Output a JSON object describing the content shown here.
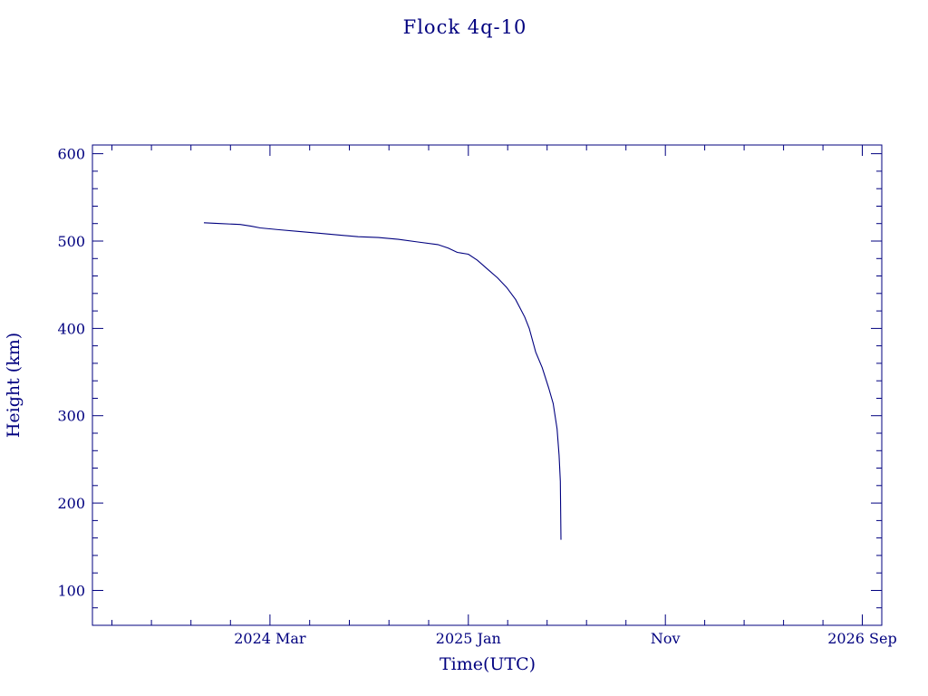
{
  "chart_data": {
    "type": "line",
    "title": "Flock 4q-10",
    "xlabel": "Time(UTC)",
    "ylabel": "Height (km)",
    "xlim": [
      "2023-06-01",
      "2026-10-01"
    ],
    "ylim": [
      60,
      610
    ],
    "grid": false,
    "x_ticks": [
      {
        "date": "2024-03-01",
        "label": "2024 Mar"
      },
      {
        "date": "2025-01-01",
        "label": "2025 Jan"
      },
      {
        "date": "2025-11-01",
        "label": "Nov"
      },
      {
        "date": "2026-09-01",
        "label": "2026 Sep"
      }
    ],
    "y_ticks": [
      100,
      200,
      300,
      400,
      500,
      600
    ],
    "series": [
      {
        "x": [
          "2023-11-20",
          "2023-12-15",
          "2024-01-15",
          "2024-02-01",
          "2024-02-15",
          "2024-03-15",
          "2024-04-15",
          "2024-05-15",
          "2024-06-15",
          "2024-07-15",
          "2024-08-15",
          "2024-09-15",
          "2024-10-15",
          "2024-11-15",
          "2024-12-01",
          "2024-12-15",
          "2025-01-01",
          "2025-01-15",
          "2025-02-01",
          "2025-02-15",
          "2025-03-01",
          "2025-03-15",
          "2025-03-29",
          "2025-04-05",
          "2025-04-15",
          "2025-04-25",
          "2025-05-05",
          "2025-05-12",
          "2025-05-18",
          "2025-05-21",
          "2025-05-23",
          "2025-05-24"
        ],
        "y": [
          521,
          520,
          519,
          517,
          515,
          513,
          511,
          509,
          507,
          505,
          504,
          502,
          499,
          496,
          492,
          487,
          485,
          478,
          467,
          458,
          447,
          433,
          413,
          400,
          373,
          355,
          332,
          314,
          285,
          255,
          225,
          158
        ]
      }
    ]
  }
}
